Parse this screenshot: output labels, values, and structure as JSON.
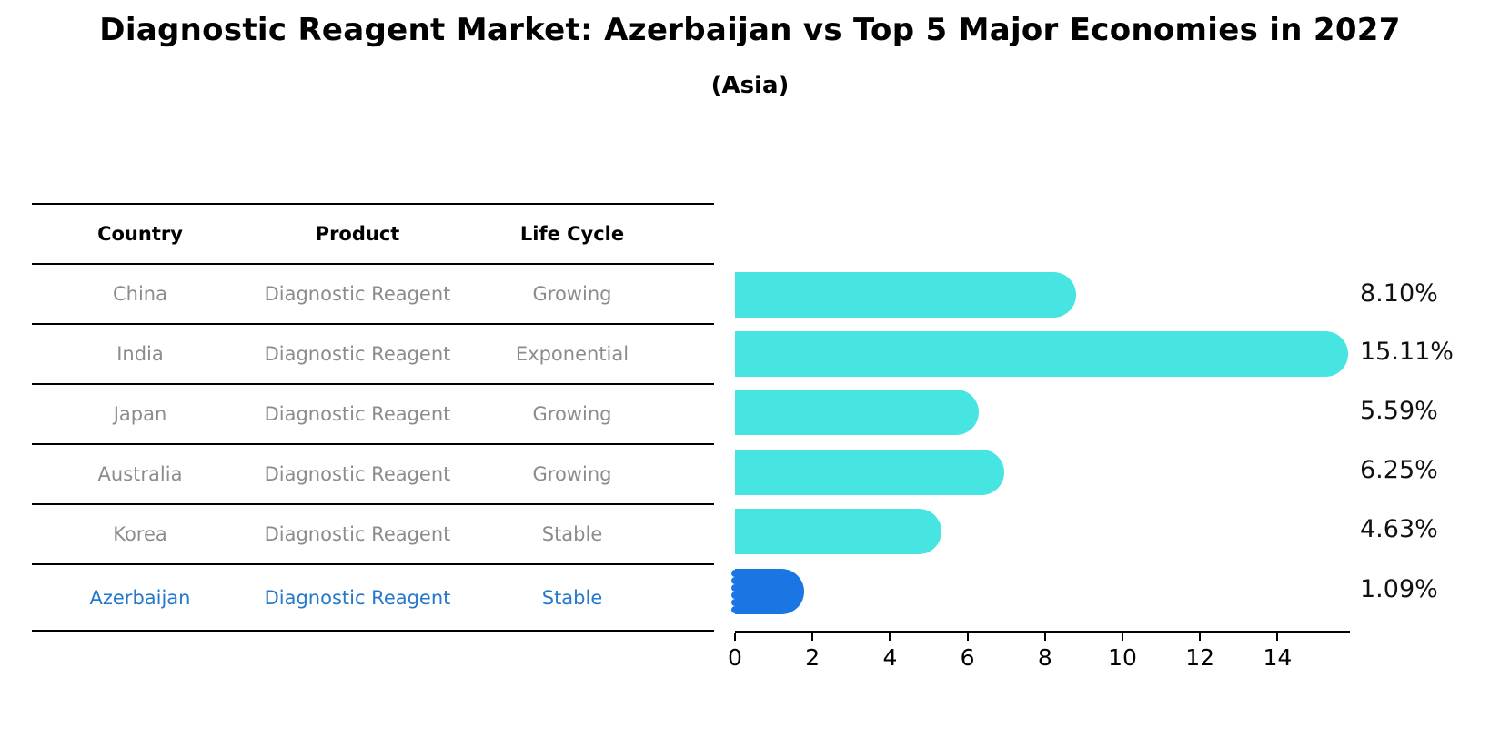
{
  "title": "Diagnostic Reagent Market: Azerbaijan vs Top 5 Major Economies in 2027",
  "subtitle": "(Asia)",
  "table": {
    "headers": {
      "country": "Country",
      "product": "Product",
      "life_cycle": "Life Cycle"
    },
    "rows": [
      {
        "country": "China",
        "product": "Diagnostic Reagent",
        "life_cycle": "Growing"
      },
      {
        "country": "India",
        "product": "Diagnostic Reagent",
        "life_cycle": "Exponential"
      },
      {
        "country": "Japan",
        "product": "Diagnostic Reagent",
        "life_cycle": "Growing"
      },
      {
        "country": "Australia",
        "product": "Diagnostic Reagent",
        "life_cycle": "Growing"
      },
      {
        "country": "Korea",
        "product": "Diagnostic Reagent",
        "life_cycle": "Stable"
      },
      {
        "country": "Azerbaijan",
        "product": "Diagnostic Reagent",
        "life_cycle": "Stable"
      }
    ],
    "highlight_row": "Azerbaijan"
  },
  "chart_data": {
    "type": "bar",
    "orientation": "horizontal",
    "title": "Diagnostic Reagent Market: Azerbaijan vs Top 5 Major Economies in 2027 (Asia)",
    "categories": [
      "China",
      "India",
      "Japan",
      "Australia",
      "Korea",
      "Azerbaijan"
    ],
    "values": [
      8.1,
      15.11,
      5.59,
      6.25,
      4.63,
      1.09
    ],
    "value_labels": [
      "8.10%",
      "15.11%",
      "5.59%",
      "6.25%",
      "4.63%",
      "1.09%"
    ],
    "x_ticks": [
      0,
      2,
      4,
      6,
      8,
      10,
      12,
      14
    ],
    "xlim": [
      0,
      15.8
    ],
    "grid": false,
    "legend": false,
    "bar_color": "#46E5E1",
    "highlight_bar_color": "#1B75E2",
    "highlight_index": 5
  },
  "colors": {
    "background": "#FFFFFF",
    "table_text": "#8C8C8C",
    "table_header_text": "#000000",
    "highlight_text": "#2579CB",
    "axis": "#000000",
    "value_label_text": "#111111"
  }
}
